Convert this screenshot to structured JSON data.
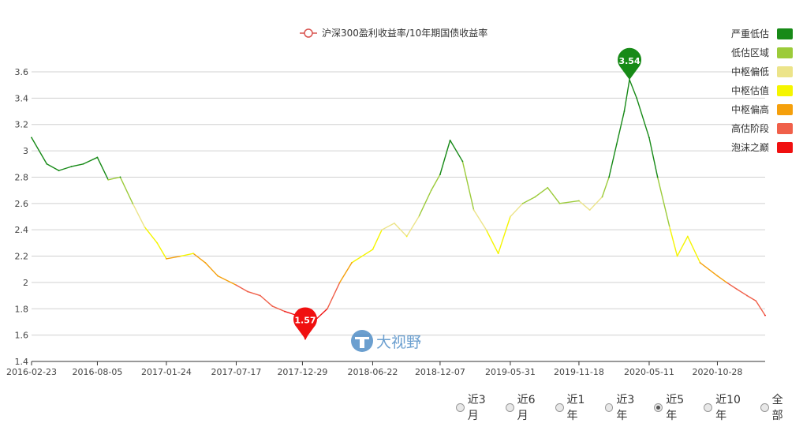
{
  "chart_data": {
    "type": "line",
    "title": "沪深300盈利收益率/10年期国债收益率",
    "series_name": "沪深300盈利收益率/10年期国债收益率",
    "x_ticks": [
      "2016-02-23",
      "2016-08-05",
      "2017-01-24",
      "2017-07-17",
      "2017-12-29",
      "2018-06-22",
      "2018-12-07",
      "2019-05-31",
      "2019-11-18",
      "2020-05-11",
      "2020-10-28"
    ],
    "y_ticks": [
      "1.4",
      "1.6",
      "1.8",
      "2",
      "2.2",
      "2.4",
      "2.6",
      "2.8",
      "3",
      "3.2",
      "3.4",
      "3.6"
    ],
    "ylim": [
      1.4,
      3.6
    ],
    "grid": true,
    "legend_placement": "top-center",
    "x": [
      "2016-02-23",
      "2016-04-01",
      "2016-05-01",
      "2016-06-01",
      "2016-07-01",
      "2016-08-05",
      "2016-09-01",
      "2016-10-01",
      "2016-11-01",
      "2016-12-01",
      "2017-01-01",
      "2017-01-24",
      "2017-03-01",
      "2017-04-01",
      "2017-05-01",
      "2017-06-01",
      "2017-07-17",
      "2017-08-15",
      "2017-09-15",
      "2017-10-15",
      "2017-11-15",
      "2017-12-15",
      "2018-01-05",
      "2018-02-01",
      "2018-03-01",
      "2018-04-01",
      "2018-05-01",
      "2018-06-22",
      "2018-07-15",
      "2018-08-15",
      "2018-09-15",
      "2018-10-15",
      "2018-11-15",
      "2018-12-07",
      "2019-01-01",
      "2019-02-01",
      "2019-03-01",
      "2019-04-01",
      "2019-05-01",
      "2019-05-31",
      "2019-07-01",
      "2019-08-01",
      "2019-09-01",
      "2019-10-01",
      "2019-11-18",
      "2019-12-15",
      "2020-01-15",
      "2020-02-01",
      "2020-02-20",
      "2020-03-10",
      "2020-03-23",
      "2020-04-10",
      "2020-05-11",
      "2020-06-01",
      "2020-07-01",
      "2020-07-20",
      "2020-08-15",
      "2020-09-15",
      "2020-10-28",
      "2020-11-20",
      "2020-12-15",
      "2021-01-10",
      "2021-02-01",
      "2021-02-24"
    ],
    "values": [
      3.1,
      2.9,
      2.85,
      2.88,
      2.9,
      2.95,
      2.78,
      2.8,
      2.6,
      2.42,
      2.3,
      2.18,
      2.2,
      2.22,
      2.15,
      2.05,
      1.98,
      1.93,
      1.9,
      1.82,
      1.78,
      1.75,
      1.57,
      1.72,
      1.8,
      2.0,
      2.15,
      2.25,
      2.4,
      2.45,
      2.35,
      2.5,
      2.7,
      2.82,
      3.08,
      2.92,
      2.55,
      2.4,
      2.22,
      2.5,
      2.6,
      2.65,
      2.72,
      2.6,
      2.62,
      2.55,
      2.65,
      2.8,
      3.05,
      3.3,
      3.54,
      3.4,
      3.1,
      2.8,
      2.42,
      2.2,
      2.35,
      2.15,
      2.05,
      2.0,
      1.95,
      1.9,
      1.86,
      1.75
    ],
    "min_marker": {
      "x": "2018-01-05",
      "value": 1.57,
      "label": "1.57"
    },
    "max_marker": {
      "x": "2020-03-23",
      "value": 3.54,
      "label": "3.54"
    },
    "valuation_legend": [
      {
        "label": "严重低估",
        "color": "#178a17",
        "min": 2.8
      },
      {
        "label": "低估区域",
        "color": "#9ccb3a",
        "min": 2.6
      },
      {
        "label": "中枢偏低",
        "color": "#ece48a",
        "min": 2.4
      },
      {
        "label": "中枢估值",
        "color": "#f5f500",
        "min": 2.2
      },
      {
        "label": "中枢偏高",
        "color": "#f5a00c",
        "min": 2.0
      },
      {
        "label": "高估阶段",
        "color": "#f0604a",
        "min": 1.8
      },
      {
        "label": "泡沫之巅",
        "color": "#f01010",
        "min": 0
      }
    ]
  },
  "colors": {
    "series_legend": "#d9534f",
    "watermark": "#3a7fc0"
  },
  "watermark_text": "大视野",
  "range_options": [
    {
      "label": "近3月",
      "checked": false
    },
    {
      "label": "近6月",
      "checked": false
    },
    {
      "label": "近1年",
      "checked": false
    },
    {
      "label": "近3年",
      "checked": false
    },
    {
      "label": "近5年",
      "checked": true
    },
    {
      "label": "近10年",
      "checked": false
    },
    {
      "label": "全部",
      "checked": false
    }
  ]
}
